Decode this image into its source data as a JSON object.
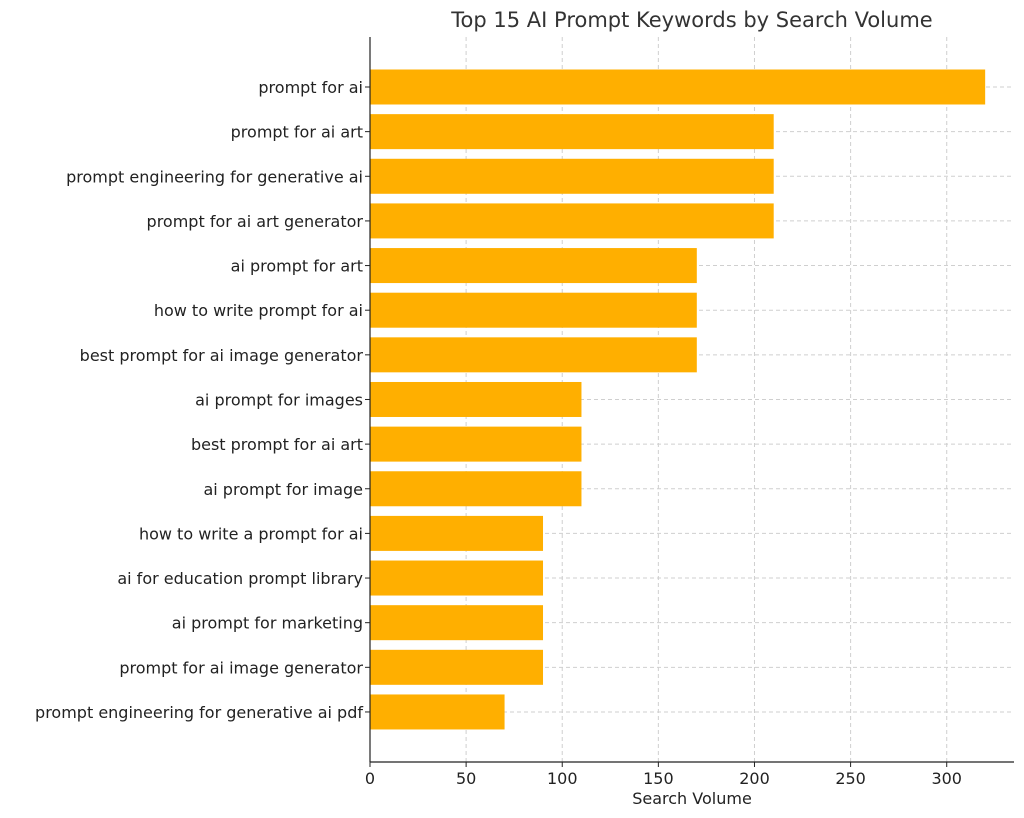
{
  "chart_data": {
    "type": "bar",
    "orientation": "horizontal",
    "title": "Top 15 AI Prompt Keywords by Search Volume",
    "xlabel": "Search Volume",
    "ylabel": "",
    "xlim": [
      0,
      335
    ],
    "xticks": [
      0,
      50,
      100,
      150,
      200,
      250,
      300
    ],
    "grid": true,
    "bar_color": "#FFAF00",
    "categories": [
      "prompt for ai",
      "prompt for ai art",
      "prompt engineering for generative ai",
      "prompt for ai art generator",
      "ai prompt for art",
      "how to write prompt for ai",
      "best prompt for ai image generator",
      "ai prompt for images",
      "best prompt for ai art",
      "ai prompt for image",
      "how to write a prompt for ai",
      "ai for education prompt library",
      "ai prompt for marketing",
      "prompt for ai image generator",
      "prompt engineering for generative ai pdf"
    ],
    "values": [
      320,
      210,
      210,
      210,
      170,
      170,
      170,
      110,
      110,
      110,
      90,
      90,
      90,
      90,
      70
    ]
  }
}
